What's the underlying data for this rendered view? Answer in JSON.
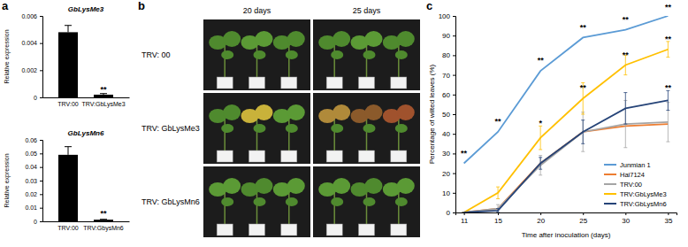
{
  "chart_data": [
    {
      "type": "bar",
      "panel": "a",
      "title": "GbLysMe3",
      "y_label": "Relative expression",
      "categories": [
        "TRV:00",
        "TRV:GbLysMe3"
      ],
      "values": [
        0.0048,
        0.0002
      ],
      "errors": [
        0.0005,
        8e-05
      ],
      "color": "#000000",
      "ylim": [
        0,
        0.006
      ],
      "yticks": [
        0,
        0.002,
        0.004,
        0.006
      ],
      "annotations": [
        {
          "x": "TRV:GbLysMe3",
          "y": 0.0004,
          "text": "**"
        }
      ]
    },
    {
      "type": "bar",
      "title": "GbLysMn6",
      "y_label": "Relative expression",
      "categories": [
        "TRV:00",
        "TRV:GbysMn6"
      ],
      "values": [
        0.049,
        0.0012
      ],
      "errors": [
        0.006,
        0.0003
      ],
      "color": "#000000",
      "ylim": [
        0,
        0.06
      ],
      "yticks": [
        0,
        0.01,
        0.02,
        0.03,
        0.04,
        0.05,
        0.06
      ],
      "annotations": [
        {
          "x": "TRV:GbysMn6",
          "y": 0.004,
          "text": "**"
        }
      ]
    },
    {
      "type": "line",
      "panel": "c",
      "x_label": "Time after inoculation (days)",
      "y_label": "Percentage of wilted leaves (%)",
      "x": [
        11,
        15,
        20,
        25,
        30,
        35
      ],
      "xlim": [
        10,
        36
      ],
      "xticks": [
        11,
        15,
        20,
        25,
        30,
        35
      ],
      "ylim": [
        0,
        100
      ],
      "yticks": [
        0,
        10,
        20,
        30,
        40,
        50,
        60,
        70,
        80,
        90,
        100
      ],
      "legend": "lower right",
      "series": [
        {
          "name": "Junmian 1",
          "color": "#5b9bd5",
          "values": [
            25,
            41,
            72,
            89,
            93,
            100
          ]
        },
        {
          "name": "Hai7124",
          "color": "#ed7d31",
          "values": [
            0,
            2,
            25,
            41,
            44,
            45
          ]
        },
        {
          "name": "TRV:00",
          "color": "#a5a5a5",
          "values": [
            0,
            2,
            24,
            41,
            45,
            46
          ],
          "errors": [
            0,
            2,
            5,
            10,
            12,
            10
          ]
        },
        {
          "name": "TRV:GbLysMe3",
          "color": "#ffc000",
          "values": [
            0,
            10,
            38,
            58,
            75,
            83
          ],
          "errors": [
            0,
            3,
            6,
            8,
            5,
            4
          ]
        },
        {
          "name": "TRV:GbLysMn6",
          "color": "#264478",
          "values": [
            0,
            1,
            25,
            41,
            53,
            57
          ],
          "errors": [
            0,
            1,
            3,
            6,
            8,
            5
          ]
        }
      ],
      "annotations": [
        {
          "x": 11,
          "y": 29,
          "text": "**"
        },
        {
          "x": 15,
          "y": 45,
          "text": "**"
        },
        {
          "x": 20,
          "y": 76,
          "text": "**"
        },
        {
          "x": 20,
          "y": 44,
          "text": "*"
        },
        {
          "x": 25,
          "y": 93,
          "text": "**"
        },
        {
          "x": 25,
          "y": 62,
          "text": "**"
        },
        {
          "x": 30,
          "y": 97,
          "text": "**"
        },
        {
          "x": 30,
          "y": 79,
          "text": "**"
        },
        {
          "x": 35,
          "y": 103,
          "text": "**"
        },
        {
          "x": 35,
          "y": 87,
          "text": "**"
        },
        {
          "x": 35,
          "y": 62,
          "text": "**"
        }
      ]
    }
  ],
  "photo_panel": {
    "panel": "b",
    "columns": [
      "20 days",
      "25 days"
    ],
    "rows": [
      "TRV: 00",
      "TRV: GbLysMe3",
      "TRV: GbLysMn6"
    ]
  }
}
